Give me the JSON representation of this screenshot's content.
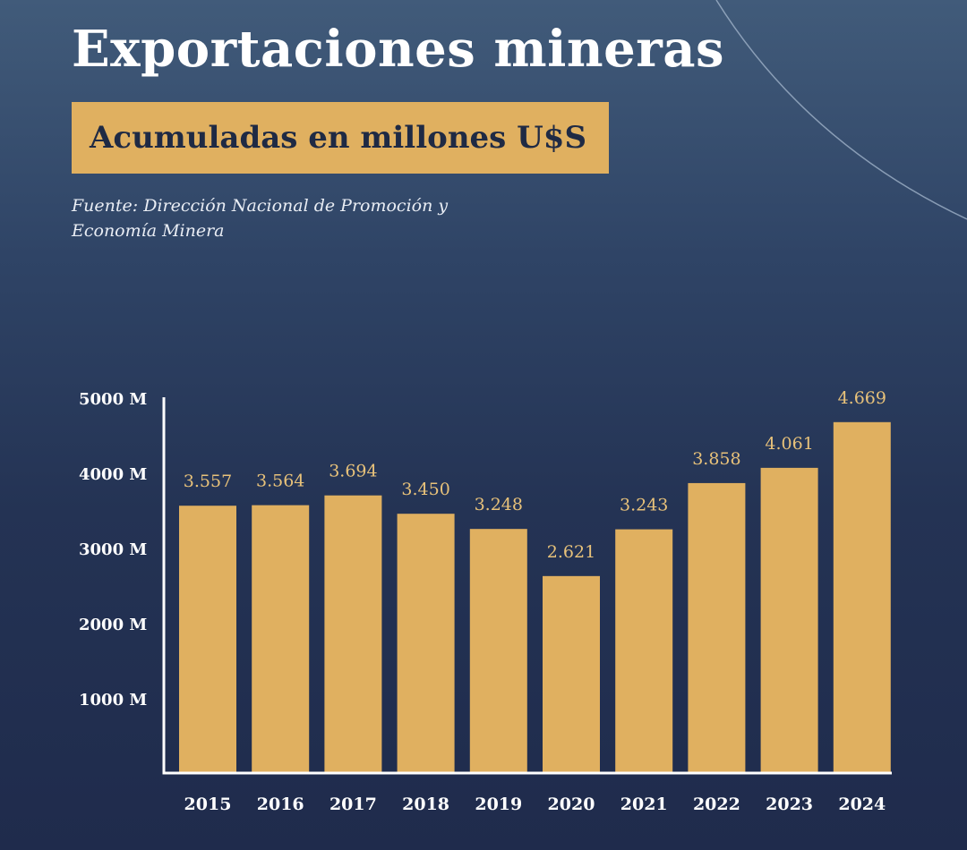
{
  "header": {
    "title": "Exportaciones mineras",
    "subtitle": "Acumuladas en millones U$S",
    "source": "Fuente: Dirección Nacional de Promoción y Economía Minera"
  },
  "colors": {
    "bar": "#e0b060",
    "value_label": "#e8c27a",
    "axis": "#ffffff",
    "text": "#ffffff"
  },
  "chart_data": {
    "type": "bar",
    "title": "Exportaciones mineras",
    "subtitle": "Acumuladas en millones U$S",
    "xlabel": "",
    "ylabel": "",
    "categories": [
      "2015",
      "2016",
      "2017",
      "2018",
      "2019",
      "2020",
      "2021",
      "2022",
      "2023",
      "2024"
    ],
    "values": [
      3557,
      3564,
      3694,
      3450,
      3248,
      2621,
      3243,
      3858,
      4061,
      4669
    ],
    "value_labels": [
      "3.557",
      "3.564",
      "3.694",
      "3.450",
      "3.248",
      "2.621",
      "3.243",
      "3.858",
      "4.061",
      "4.669"
    ],
    "ylim": [
      0,
      5000
    ],
    "yticks": [
      1000,
      2000,
      3000,
      4000,
      5000
    ],
    "ytick_labels": [
      "1000 M",
      "2000 M",
      "3000 M",
      "4000 M",
      "5000 M"
    ],
    "grid": false,
    "legend": "none"
  }
}
